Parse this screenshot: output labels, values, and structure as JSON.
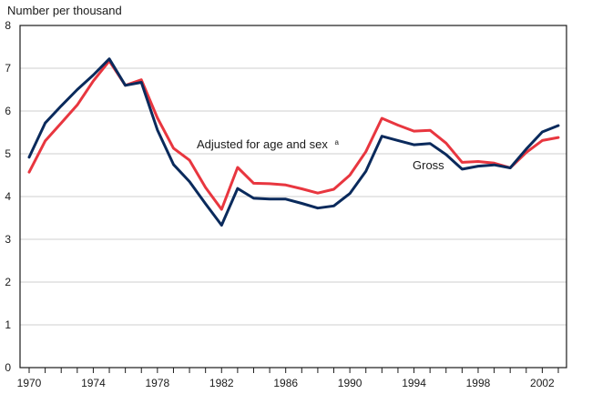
{
  "chart_data": {
    "type": "line",
    "title": "",
    "ylabel": "Number per thousand",
    "xlabel": "",
    "ylim": [
      0,
      8
    ],
    "yticks": [
      0,
      1,
      2,
      3,
      4,
      5,
      6,
      7,
      8
    ],
    "xlim": [
      1970,
      2003
    ],
    "xticks": [
      1970,
      1974,
      1978,
      1982,
      1986,
      1990,
      1994,
      1998,
      2002
    ],
    "grid": true,
    "x": [
      1970,
      1971,
      1972,
      1973,
      1974,
      1975,
      1976,
      1977,
      1978,
      1979,
      1980,
      1981,
      1982,
      1983,
      1984,
      1985,
      1986,
      1987,
      1988,
      1989,
      1990,
      1991,
      1992,
      1993,
      1994,
      1995,
      1996,
      1997,
      1998,
      1999,
      2000,
      2001,
      2002,
      2003
    ],
    "series": [
      {
        "name": "Adjusted for age and sex",
        "color": "#e8363f",
        "values": [
          4.57,
          5.3,
          5.72,
          6.14,
          6.7,
          7.17,
          6.6,
          6.73,
          5.84,
          5.13,
          4.85,
          4.21,
          3.7,
          4.68,
          4.31,
          4.3,
          4.27,
          4.18,
          4.08,
          4.17,
          4.5,
          5.05,
          5.83,
          5.67,
          5.53,
          5.55,
          5.25,
          4.8,
          4.82,
          4.78,
          4.67,
          5.03,
          5.31,
          5.38
        ]
      },
      {
        "name": "Gross",
        "color": "#0a2a5c",
        "values": [
          4.92,
          5.72,
          6.12,
          6.5,
          6.84,
          7.22,
          6.6,
          6.67,
          5.56,
          4.75,
          4.35,
          3.83,
          3.33,
          4.19,
          3.96,
          3.94,
          3.94,
          3.84,
          3.73,
          3.78,
          4.07,
          4.59,
          5.41,
          5.31,
          5.21,
          5.24,
          4.98,
          4.64,
          4.71,
          4.74,
          4.67,
          5.11,
          5.51,
          5.66
        ]
      }
    ],
    "annotations": {
      "adjusted_label": "Adjusted for age and sex",
      "adjusted_superscript": "a",
      "gross_label": "Gross"
    }
  }
}
